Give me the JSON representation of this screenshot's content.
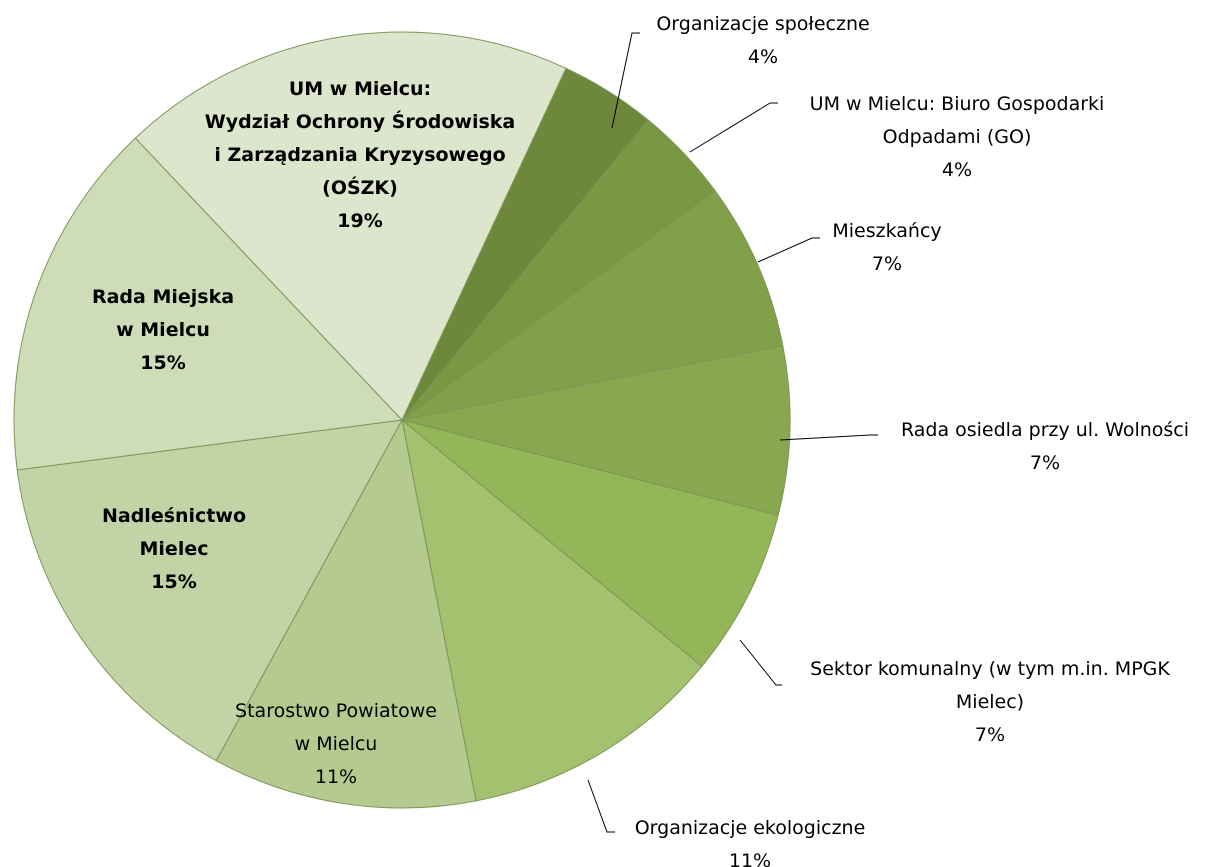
{
  "chart_data": {
    "type": "pie",
    "categories": [
      "Organizacje społeczne",
      "UM w Mielcu: Biuro Gospodarki\nOdpadami (GO)",
      "Mieszkańcy",
      "Rada osiedla przy ul. Wolności",
      "Sektor komunalny (w tym m.in. MPGK\nMielec)",
      "Organizacje ekologiczne",
      "Starostwo Powiatowe\nw Mielcu",
      "Nadleśnictwo\nMielec",
      "Rada Miejska\nw Mielcu",
      "UM w Mielcu:\nWydział Ochrony Środowiska\ni Zarządzania Kryzysowego\n(OŚZK)"
    ],
    "values": [
      4,
      4,
      7,
      7,
      7,
      11,
      11,
      15,
      15,
      19
    ],
    "value_labels": [
      "4%",
      "4%",
      "7%",
      "7%",
      "7%",
      "11%",
      "11%",
      "15%",
      "15%",
      "19%"
    ],
    "colors": [
      "#6d873b",
      "#789843",
      "#80a04a",
      "#88a850",
      "#93b659",
      "#a3c16f",
      "#b4ca8e",
      "#c2d4a5",
      "#cfdcb8",
      "#dde6cc"
    ]
  }
}
